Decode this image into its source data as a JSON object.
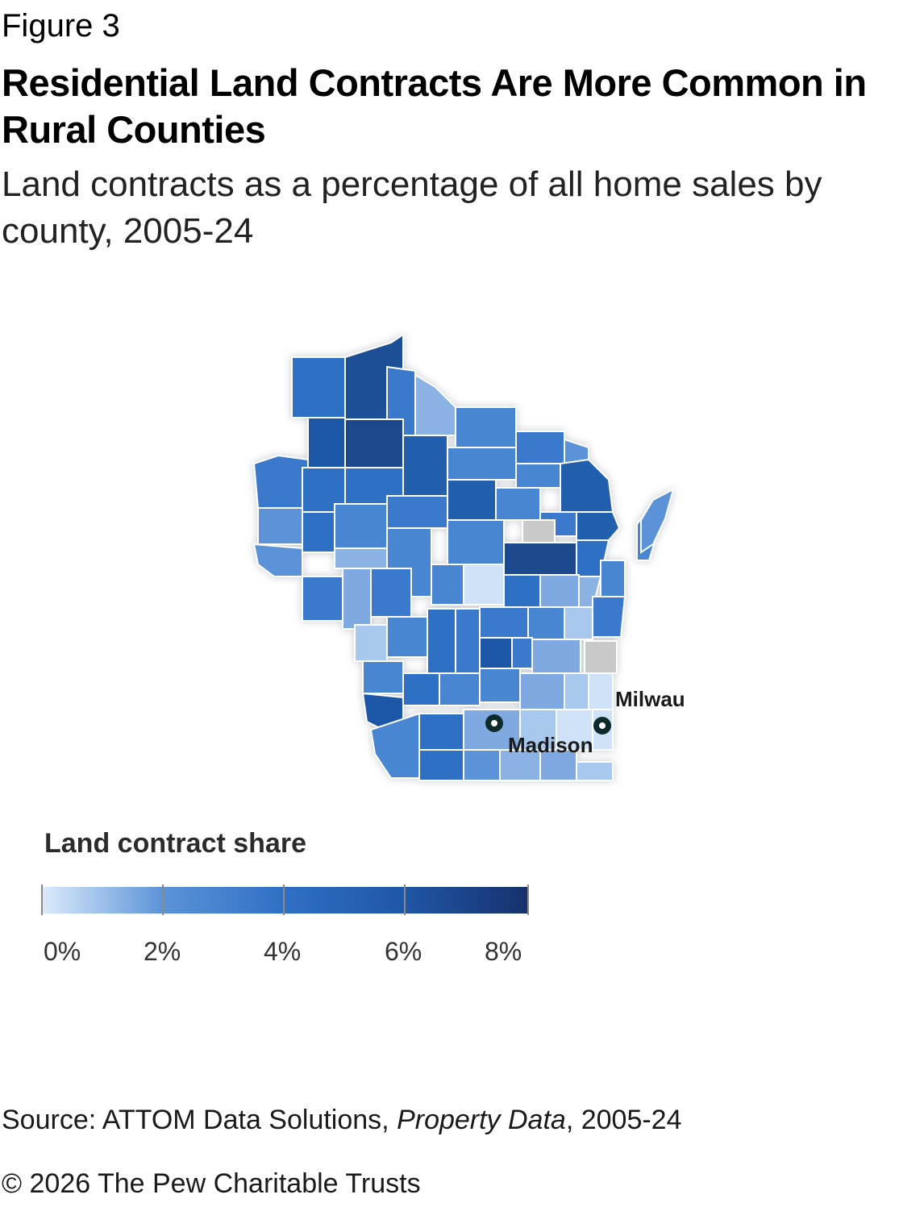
{
  "figure_label": "Figure 3",
  "title": "Residential Land Contracts Are More Common in Rural Counties",
  "subtitle": "Land contracts as a percentage of all home sales by county, 2005-24",
  "map": {
    "region": "Wisconsin",
    "no_data_color": "#c9c9c9",
    "cities": [
      {
        "name": "Milwaukee",
        "marker": "circle-marker-icon"
      },
      {
        "name": "Madison",
        "marker": "circle-marker-icon"
      }
    ]
  },
  "legend": {
    "title": "Land contract share",
    "ticks": [
      "0%",
      "2%",
      "4%",
      "6%",
      "8%"
    ],
    "colors": [
      "#dcebfb",
      "#5b93d8",
      "#2f6fc4",
      "#1f56a6",
      "#17316b"
    ]
  },
  "source": {
    "prefix": "Source: ATTOM Data Solutions, ",
    "italic": "Property Data",
    "suffix": ", 2005-24"
  },
  "copyright": "© 2026 The Pew Charitable Trusts"
}
